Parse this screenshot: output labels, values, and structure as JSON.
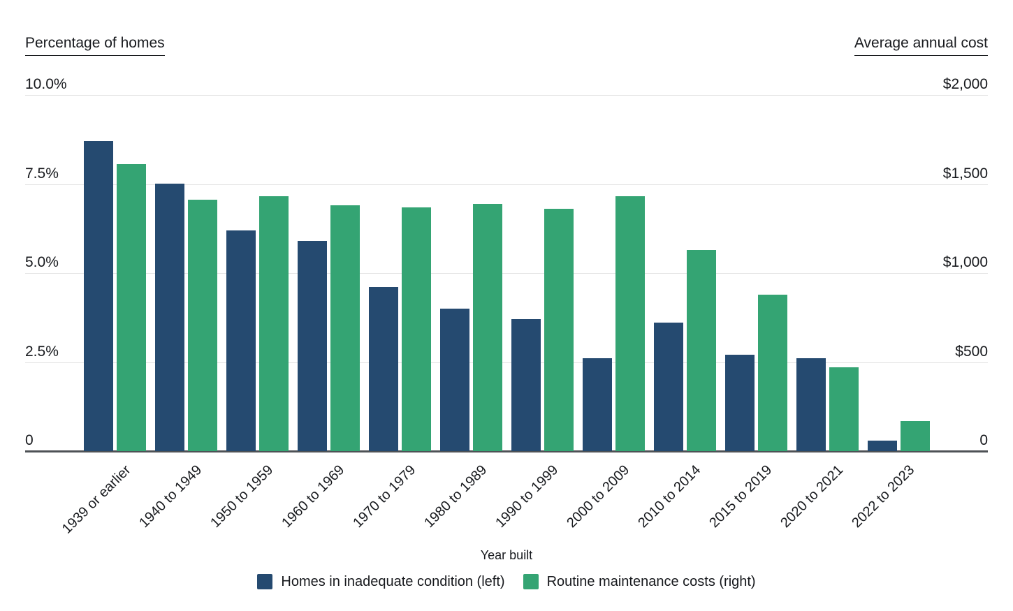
{
  "chart_data": {
    "type": "bar",
    "title": "",
    "x_axis_title": "Year built",
    "categories": [
      "1939 or earlier",
      "1940 to 1949",
      "1950 to 1959",
      "1960 to 1969",
      "1970 to 1979",
      "1980 to 1989",
      "1990 to 1999",
      "2000 to 2009",
      "2010 to 2014",
      "2015 to 2019",
      "2020 to 2021",
      "2022 to 2023"
    ],
    "left_axis": {
      "title": "Percentage of homes",
      "ticks": [
        "10.0%",
        "7.5%",
        "5.0%",
        "2.5%",
        "0"
      ],
      "range": [
        0,
        10
      ],
      "unit": "percent"
    },
    "right_axis": {
      "title": "Average annual cost",
      "ticks": [
        "$2,000",
        "$1,500",
        "$1,000",
        "$500",
        "0"
      ],
      "range": [
        0,
        2000
      ],
      "unit": "dollars"
    },
    "grid": "horizontal",
    "legend_position": "bottom",
    "series": [
      {
        "name": "Homes in inadequate condition (left)",
        "axis": "left",
        "color": "#254a70",
        "values": [
          8.7,
          7.5,
          6.2,
          5.9,
          4.6,
          4.0,
          3.7,
          2.6,
          3.6,
          2.7,
          2.6,
          0.3
        ]
      },
      {
        "name": "Routine maintenance costs (right)",
        "axis": "right",
        "color": "#34a473",
        "values": [
          1610,
          1410,
          1430,
          1380,
          1370,
          1390,
          1360,
          1430,
          1130,
          880,
          470,
          170
        ]
      }
    ]
  }
}
